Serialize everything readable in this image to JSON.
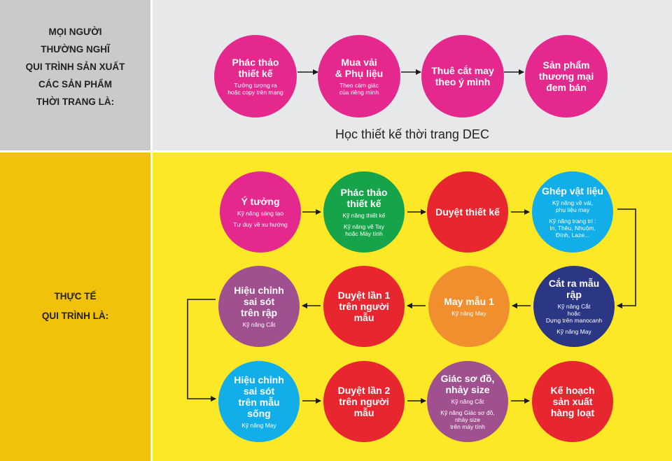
{
  "colors": {
    "magenta": "#e5288d",
    "green": "#16a34a",
    "red": "#e8262f",
    "cyan": "#12aeea",
    "purple": "#a1508f",
    "orange": "#f18f2e",
    "navy": "#2b3684"
  },
  "left_top": {
    "lines": [
      "MỌI NGƯỜI",
      "THƯỜNG NGHĨ",
      "QUI TRÌNH SẢN XUẤT",
      "CÁC SẢN PHẨM",
      "THỜI TRANG LÀ:"
    ]
  },
  "left_bottom": {
    "lines": [
      "THỰC TẾ",
      "QUI TRÌNH LÀ:"
    ]
  },
  "watermark": "Học thiết kế thời trang DEC",
  "top_flow": [
    {
      "title": "Phác thảo\nthiết kế",
      "sub": "Tưởng tượng ra\nhoặc copy trên mạng",
      "sub2": "",
      "color": "magenta"
    },
    {
      "title": "Mua vải\n& Phụ liệu",
      "sub": "Theo cảm giác\ncủa riêng mình",
      "sub2": "",
      "color": "magenta"
    },
    {
      "title": "Thuê cắt may\ntheo ý mình",
      "sub": "",
      "sub2": "",
      "color": "magenta"
    },
    {
      "title": "Sản phẩm\nthương mại\nđem bán",
      "sub": "",
      "sub2": "",
      "color": "magenta"
    }
  ],
  "real_flow": [
    {
      "title": "Ý tưởng",
      "sub": "Kỹ năng sáng tạo",
      "sub2": "Tư duy về xu hướng",
      "color": "magenta"
    },
    {
      "title": "Phác thảo\nthiết kế",
      "sub": "Kỹ năng thiết kế",
      "sub2": "Kỹ năng vẽ Tay\nhoặc Máy tính",
      "color": "green"
    },
    {
      "title": "Duyệt thiết kế",
      "sub": "",
      "sub2": "",
      "color": "red"
    },
    {
      "title": "Ghép vật liệu",
      "sub": "Kỹ năng về vải,\nphụ liệu may",
      "sub2": "Kỹ năng trang trí :\nIn, Thêu, Nhuộm,\nĐính, Laze...",
      "color": "cyan"
    },
    {
      "title": "Cắt ra mẫu rập",
      "sub": "Kỹ năng Cắt\nhoặc\nDựng trên manocanh",
      "sub2": "Kỹ năng May",
      "color": "navy"
    },
    {
      "title": "May mẫu 1",
      "sub": "Kỹ năng May",
      "sub2": "",
      "color": "orange"
    },
    {
      "title": "Duyệt lần 1\ntrên người mẫu",
      "sub": "",
      "sub2": "",
      "color": "red"
    },
    {
      "title": "Hiệu chỉnh\nsai sót\ntrên rập",
      "sub": "Kỹ năng Cắt",
      "sub2": "",
      "color": "purple"
    },
    {
      "title": "Hiệu chỉnh\nsai sót\ntrên mẫu sống",
      "sub": "Kỹ năng May",
      "sub2": "",
      "color": "cyan"
    },
    {
      "title": "Duyệt lần 2\ntrên người mẫu",
      "sub": "",
      "sub2": "",
      "color": "red"
    },
    {
      "title": "Giác sơ đồ,\nnhảy size",
      "sub": "Kỹ năng Cắt",
      "sub2": "Kỹ năng Giác sơ đồ,\nnhảy size\ntrên máy tính",
      "color": "purple"
    },
    {
      "title": "Kế hoạch\nsản xuất\nhàng loạt",
      "sub": "",
      "sub2": "",
      "color": "red"
    }
  ]
}
